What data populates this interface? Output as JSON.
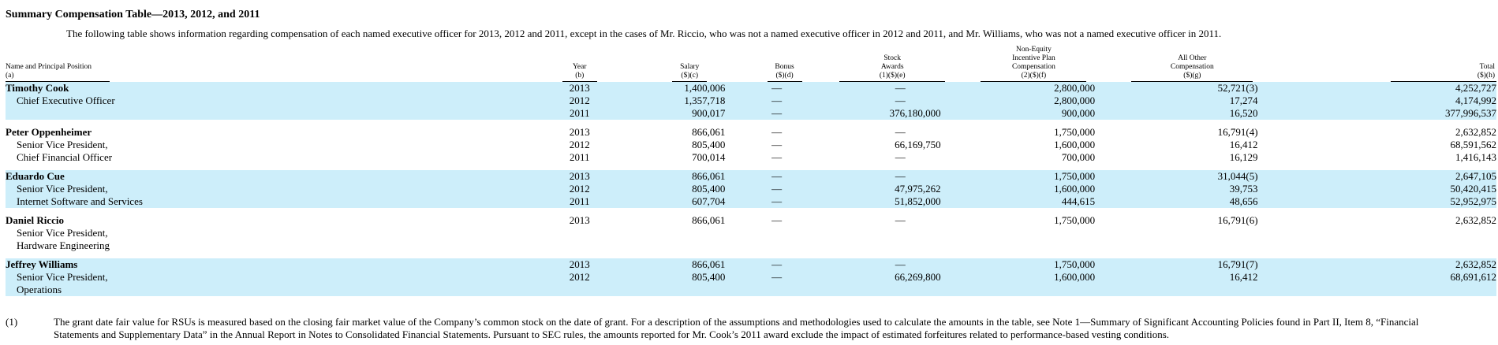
{
  "title": "Summary Compensation Table—2013, 2012, and 2011",
  "intro": "The following table shows information regarding compensation of each named executive officer for 2013, 2012 and 2011, except in the cases of Mr. Riccio, who was not a named executive officer in 2012 and 2011, and Mr. Williams, who was not a named executive officer in 2011.",
  "headers": {
    "name": [
      "Name and Principal Position",
      "(a)"
    ],
    "year": [
      "Year",
      "(b)"
    ],
    "salary": [
      "Salary",
      "($)(c)"
    ],
    "bonus": [
      "Bonus",
      "($)(d)"
    ],
    "stock": [
      "Stock",
      "Awards",
      "(1)($)(e)"
    ],
    "nonequity": [
      "Non-Equity",
      "Incentive Plan",
      "Compensation",
      "(2)($)(f)"
    ],
    "other": [
      "All Other",
      "Compensation",
      "($)(g)"
    ],
    "total": [
      "Total",
      "($)(h)"
    ]
  },
  "executives": [
    {
      "name": "Timothy Cook",
      "positions": [
        "Chief Executive Officer"
      ],
      "years": [
        "2013",
        "2012",
        "2011"
      ],
      "salary": [
        "1,400,006",
        "1,357,718",
        "900,017"
      ],
      "bonus": [
        "—",
        "—",
        "—"
      ],
      "stock": [
        "—",
        "—",
        "376,180,000"
      ],
      "nonequity": [
        "2,800,000",
        "2,800,000",
        "900,000"
      ],
      "other": [
        "52,721(3)",
        "17,274",
        "16,520"
      ],
      "total": [
        "4,252,727",
        "4,174,992",
        "377,996,537"
      ]
    },
    {
      "name": "Peter Oppenheimer",
      "positions": [
        "Senior Vice President,",
        "Chief Financial Officer"
      ],
      "years": [
        "2013",
        "2012",
        "2011"
      ],
      "salary": [
        "866,061",
        "805,400",
        "700,014"
      ],
      "bonus": [
        "—",
        "—",
        "—"
      ],
      "stock": [
        "—",
        "66,169,750",
        "—"
      ],
      "nonequity": [
        "1,750,000",
        "1,600,000",
        "700,000"
      ],
      "other": [
        "16,791(4)",
        "16,412",
        "16,129"
      ],
      "total": [
        "2,632,852",
        "68,591,562",
        "1,416,143"
      ]
    },
    {
      "name": "Eduardo Cue",
      "positions": [
        "Senior Vice President,",
        "Internet Software and Services"
      ],
      "years": [
        "2013",
        "2012",
        "2011"
      ],
      "salary": [
        "866,061",
        "805,400",
        "607,704"
      ],
      "bonus": [
        "—",
        "—",
        "—"
      ],
      "stock": [
        "—",
        "47,975,262",
        "51,852,000"
      ],
      "nonequity": [
        "1,750,000",
        "1,600,000",
        "444,615"
      ],
      "other": [
        "31,044(5)",
        "39,753",
        "48,656"
      ],
      "total": [
        "2,647,105",
        "50,420,415",
        "52,952,975"
      ]
    },
    {
      "name": "Daniel Riccio",
      "positions": [
        "Senior Vice President,",
        "Hardware Engineering"
      ],
      "years": [
        "2013"
      ],
      "salary": [
        "866,061"
      ],
      "bonus": [
        "—"
      ],
      "stock": [
        "—"
      ],
      "nonequity": [
        "1,750,000"
      ],
      "other": [
        "16,791(6)"
      ],
      "total": [
        "2,632,852"
      ]
    },
    {
      "name": "Jeffrey Williams",
      "positions": [
        "Senior Vice President,",
        "Operations"
      ],
      "years": [
        "2013",
        "2012"
      ],
      "salary": [
        "866,061",
        "805,400"
      ],
      "bonus": [
        "—",
        "—"
      ],
      "stock": [
        "—",
        "66,269,800"
      ],
      "nonequity": [
        "1,750,000",
        "1,600,000"
      ],
      "other": [
        "16,791(7)",
        "16,412"
      ],
      "total": [
        "2,632,852",
        "68,691,612"
      ]
    }
  ],
  "footnote": {
    "mark": "(1)",
    "text": "The grant date fair value for RSUs is measured based on the closing fair market value of the Company’s common stock on the date of grant. For a description of the assumptions and methodologies used to calculate the amounts in the table, see Note 1—Summary of Significant Accounting Policies found in Part II, Item 8, “Financial Statements and Supplementary Data” in the Annual Report in Notes to Consolidated Financial Statements. Pursuant to SEC rules, the amounts reported for Mr. Cook’s 2011 award exclude the impact of estimated forfeitures related to performance-based vesting conditions."
  },
  "colors": {
    "row_shade": "#cdeefa"
  }
}
